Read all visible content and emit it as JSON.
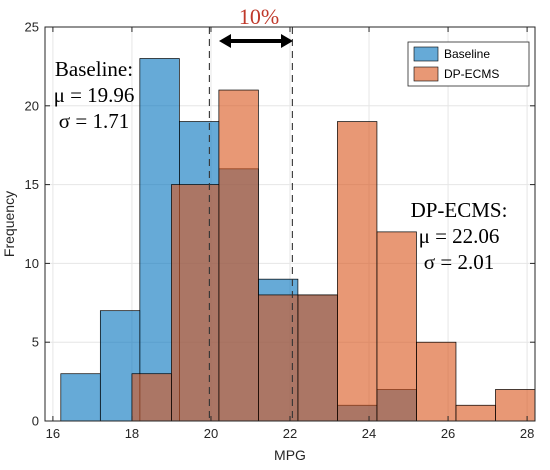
{
  "chart_data": {
    "type": "bar",
    "subtype": "overlapping-histogram",
    "xlabel": "MPG",
    "ylabel": "Frequency",
    "xlim": [
      15.8,
      28.2
    ],
    "ylim": [
      0,
      25
    ],
    "xticks": [
      16,
      18,
      20,
      22,
      24,
      26,
      28
    ],
    "yticks": [
      0,
      5,
      10,
      15,
      20,
      25
    ],
    "grid": true,
    "legend_position": "top-right",
    "series": [
      {
        "name": "Baseline",
        "color": "#0072BD",
        "bins": [
          {
            "x0": 16.2,
            "x1": 17.2,
            "value": 3
          },
          {
            "x0": 17.2,
            "x1": 18.2,
            "value": 7
          },
          {
            "x0": 18.2,
            "x1": 19.2,
            "value": 23
          },
          {
            "x0": 19.2,
            "x1": 20.2,
            "value": 19
          },
          {
            "x0": 20.2,
            "x1": 21.2,
            "value": 16
          },
          {
            "x0": 21.2,
            "x1": 22.2,
            "value": 9
          },
          {
            "x0": 22.2,
            "x1": 23.2,
            "value": 8
          },
          {
            "x0": 23.2,
            "x1": 24.2,
            "value": 1
          },
          {
            "x0": 24.2,
            "x1": 25.2,
            "value": 2
          }
        ]
      },
      {
        "name": "DP-ECMS",
        "color": "#D95319",
        "bins": [
          {
            "x0": 18.0,
            "x1": 19.0,
            "value": 3
          },
          {
            "x0": 19.0,
            "x1": 20.2,
            "value": 15
          },
          {
            "x0": 20.2,
            "x1": 21.2,
            "value": 21
          },
          {
            "x0": 21.2,
            "x1": 22.2,
            "value": 8
          },
          {
            "x0": 22.2,
            "x1": 23.2,
            "value": 8
          },
          {
            "x0": 23.2,
            "x1": 24.2,
            "value": 19
          },
          {
            "x0": 24.2,
            "x1": 25.2,
            "value": 12
          },
          {
            "x0": 25.2,
            "x1": 26.2,
            "value": 5
          },
          {
            "x0": 26.2,
            "x1": 27.2,
            "value": 1
          },
          {
            "x0": 27.2,
            "x1": 28.2,
            "value": 2
          }
        ]
      }
    ],
    "reference_lines": [
      19.96,
      22.06
    ],
    "annotations": {
      "percent": {
        "text": "10%",
        "color": "#C0392B"
      },
      "baseline_stats": {
        "title": "Baseline:",
        "mu": "μ = 19.96",
        "sigma": "σ = 1.71"
      },
      "dpecms_stats": {
        "title": "DP-ECMS:",
        "mu": "μ = 22.06",
        "sigma": "σ = 2.01"
      }
    }
  }
}
